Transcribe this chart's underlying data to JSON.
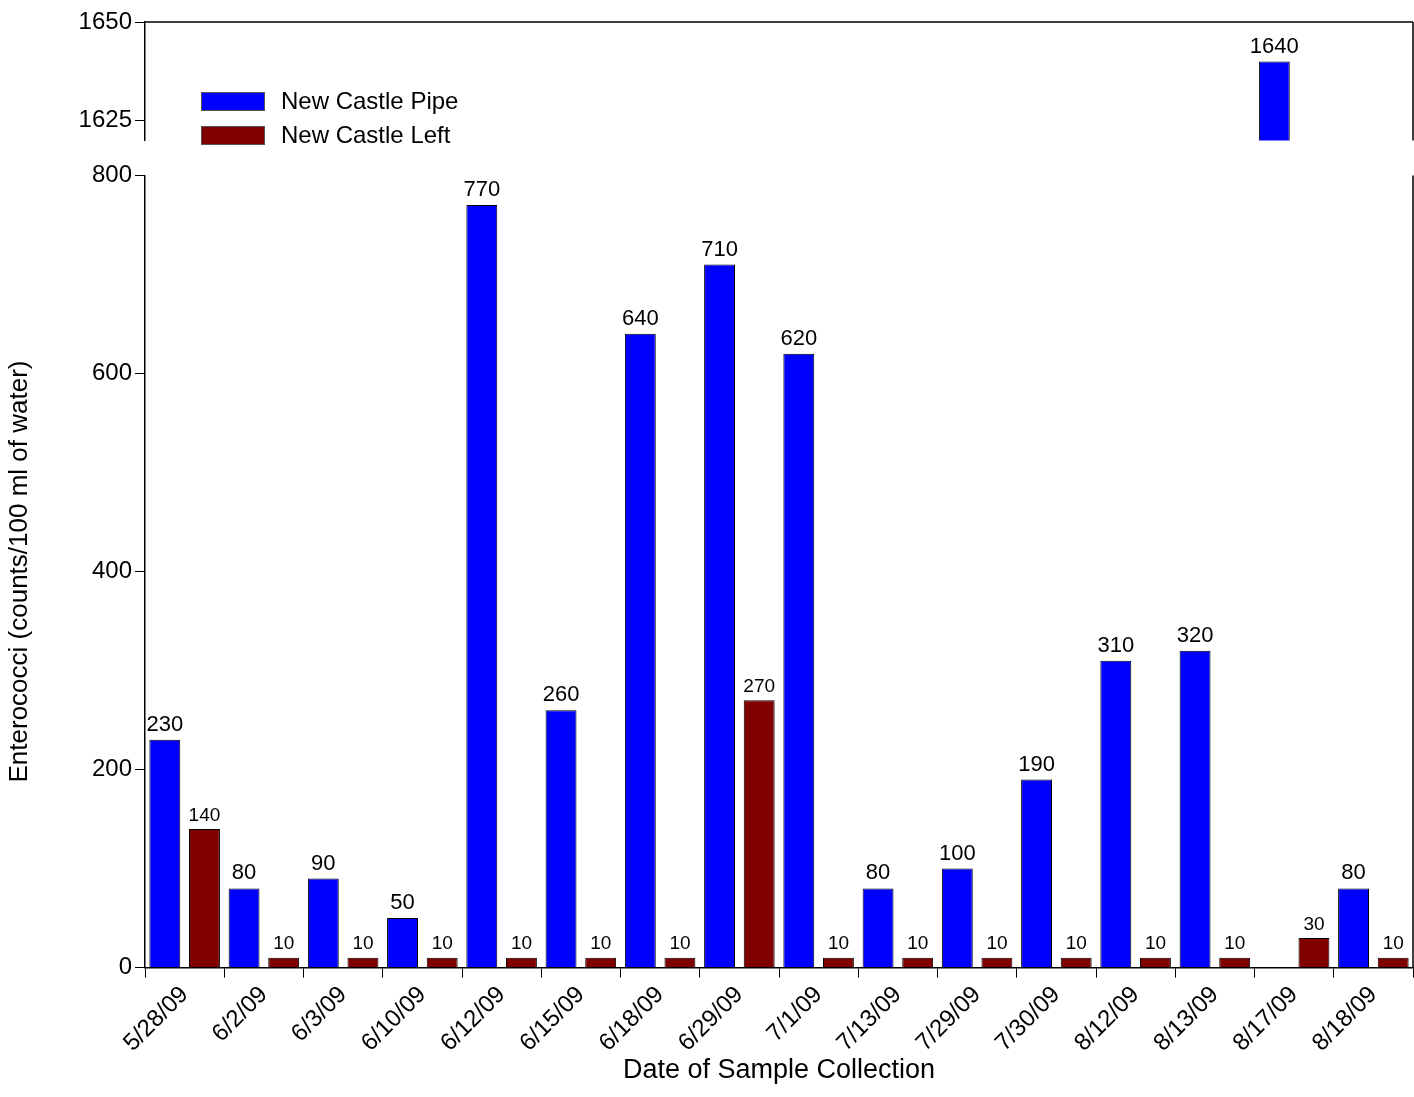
{
  "chart_data": [
    {
      "type": "bar",
      "categories": [
        null,
        null,
        null,
        null,
        null,
        null,
        null,
        null,
        null,
        null,
        null,
        null,
        null,
        null,
        null,
        null
      ],
      "series": [
        {
          "color": "#0000ff",
          "values": [
            null,
            null,
            null,
            null,
            null,
            null,
            null,
            null,
            null,
            null,
            null,
            null,
            null,
            null,
            1640,
            null
          ]
        },
        {
          "color": "#800000",
          "values": [
            null,
            null,
            null,
            null,
            null,
            null,
            null,
            null,
            null,
            null,
            null,
            null,
            null,
            null,
            null,
            null
          ]
        }
      ],
      "ylim": [
        1620,
        1650
      ],
      "yticks": [
        1625,
        1650
      ],
      "tick_labels": "y",
      "grid": false,
      "data_labels": true
    },
    {
      "type": "bar",
      "xlabel": "Date of Sample Collection",
      "ylabel": "Enterococci (counts/100 ml of water)",
      "categories": [
        "5/28/09",
        "6/2/09",
        "6/3/09",
        "6/10/09",
        "6/12/09",
        "6/15/09",
        "6/18/09",
        "6/29/09",
        "7/1/09",
        "7/13/09",
        "7/29/09",
        "7/30/09",
        "8/12/09",
        "8/13/09",
        "8/17/09",
        "8/18/09"
      ],
      "series": [
        {
          "name": "New Castle Pipe",
          "color": "#0000ff",
          "values": [
            230,
            80,
            90,
            50,
            770,
            260,
            640,
            710,
            620,
            80,
            100,
            190,
            310,
            320,
            null,
            80
          ]
        },
        {
          "name": "New Castle Left",
          "color": "#800000",
          "values": [
            140,
            10,
            10,
            10,
            10,
            10,
            10,
            270,
            10,
            10,
            10,
            10,
            10,
            10,
            30,
            10
          ]
        }
      ],
      "ylim": [
        0,
        800
      ],
      "yticks": [
        0,
        200,
        400,
        600,
        800
      ],
      "grid": false,
      "legend": "top left",
      "data_labels": true
    }
  ]
}
